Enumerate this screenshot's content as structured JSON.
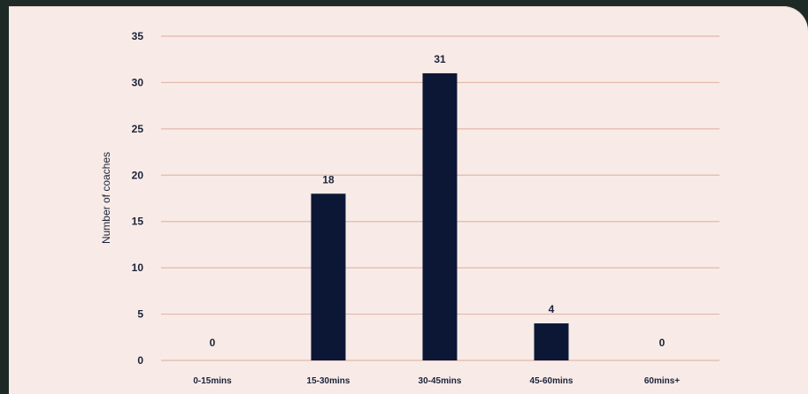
{
  "chart_data": {
    "type": "bar",
    "categories": [
      "0-15mins",
      "15-30mins",
      "30-45mins",
      "45-60mins",
      "60mins+"
    ],
    "values": [
      0,
      18,
      31,
      4,
      0
    ],
    "data_labels": [
      "0",
      "18",
      "31",
      "4",
      "0"
    ],
    "title": "",
    "xlabel": "",
    "ylabel": "Number of coaches",
    "ylim": [
      0,
      35
    ],
    "yticks": [
      0,
      5,
      10,
      15,
      20,
      25,
      30,
      35
    ],
    "grid": true,
    "colors": {
      "bar": "#0c1736",
      "grid": "#e3b7aa",
      "text": "#1b2239",
      "background": "#f8ebe7"
    }
  }
}
